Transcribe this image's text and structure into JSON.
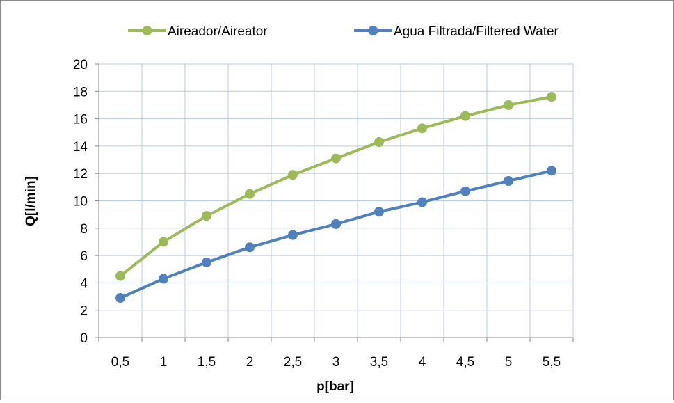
{
  "chart_data": {
    "type": "line",
    "title": "",
    "xlabel": "p[bar]",
    "ylabel": "Q[l/min]",
    "categories": [
      "0,5",
      "1",
      "1,5",
      "2",
      "2,5",
      "3",
      "3,5",
      "4",
      "4,5",
      "5",
      "5,5"
    ],
    "ylim": [
      0,
      20
    ],
    "yticks": [
      "0",
      "2",
      "4",
      "6",
      "8",
      "10",
      "12",
      "14",
      "16",
      "18",
      "20"
    ],
    "grid": true,
    "legend_position": "top",
    "series": [
      {
        "name": "Aireador/Aireator",
        "color": "#9bbb59",
        "values": [
          4.5,
          7.0,
          8.9,
          10.5,
          11.9,
          13.1,
          14.3,
          15.3,
          16.2,
          17.0,
          17.6
        ]
      },
      {
        "name": "Agua Filtrada/Filtered Water",
        "color": "#4f81bd",
        "values": [
          2.9,
          4.3,
          5.5,
          6.6,
          7.5,
          8.3,
          9.2,
          9.9,
          10.7,
          11.45,
          12.2
        ]
      }
    ]
  }
}
